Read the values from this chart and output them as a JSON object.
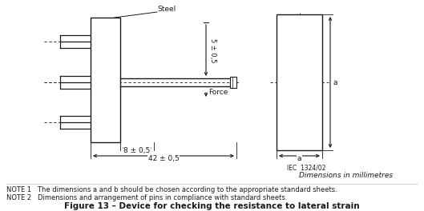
{
  "bg_color": "#ffffff",
  "line_color": "#1a1a1a",
  "title": "Figure 13 – Device for checking the resistance to lateral strain",
  "title_fontsize": 8,
  "note1": "NOTE 1   The dimensions a and b should be chosen according to the appropriate standard sheets.",
  "note2": "NOTE 2   Dimensions and arrangement of pins in compliance with standard sheets.",
  "iec_label": "IEC  1324/02",
  "dim_label": "Dimensions in millimetres",
  "label_steel": "Steel",
  "label_force": "Force",
  "label_5": "5 ± 0,5",
  "label_8": "8 ± 0,5",
  "label_42": "42 ± 0,5",
  "label_a_horiz": "a",
  "label_a_vert": "a",
  "figsize": [
    5.29,
    2.64
  ],
  "dpi": 100
}
